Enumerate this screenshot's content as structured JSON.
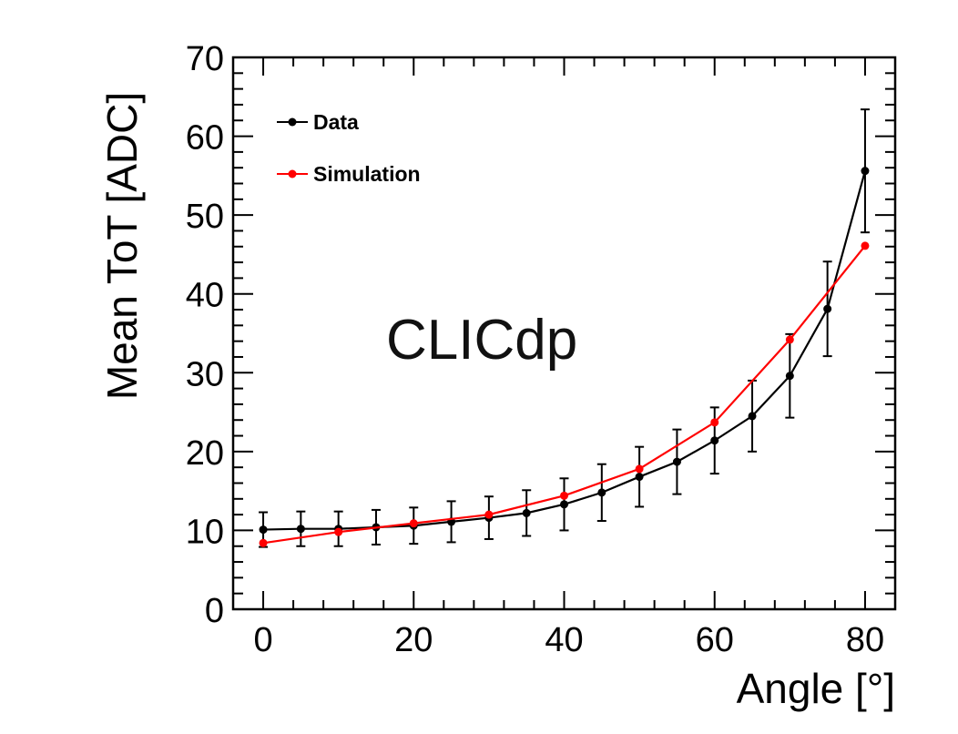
{
  "chart_data": {
    "type": "line",
    "title": "",
    "xlabel": "Angle [°]",
    "ylabel": "Mean ToT [ADC]",
    "xlim": [
      -4,
      84
    ],
    "ylim": [
      0,
      70
    ],
    "x_ticks": [
      0,
      20,
      40,
      60,
      80
    ],
    "y_ticks": [
      0,
      10,
      20,
      30,
      40,
      50,
      60,
      70
    ],
    "x_tick_labels": [
      "0",
      "20",
      "40",
      "60",
      "80"
    ],
    "y_tick_labels": [
      "0",
      "10",
      "20",
      "30",
      "40",
      "50",
      "60",
      "70"
    ],
    "annotation": "CLICdp",
    "legend_position": "top-left",
    "series": [
      {
        "name": "Data",
        "color": "#000000",
        "x": [
          0,
          5,
          10,
          15,
          20,
          25,
          30,
          35,
          40,
          45,
          50,
          55,
          60,
          65,
          70,
          75,
          80
        ],
        "y": [
          10.1,
          10.2,
          10.2,
          10.4,
          10.6,
          11.1,
          11.6,
          12.2,
          13.3,
          14.8,
          16.8,
          18.7,
          21.4,
          24.5,
          29.6,
          38.1,
          55.6
        ],
        "err": [
          2.2,
          2.2,
          2.2,
          2.2,
          2.3,
          2.6,
          2.7,
          2.9,
          3.3,
          3.6,
          3.8,
          4.1,
          4.2,
          4.5,
          5.3,
          6.0,
          7.8
        ]
      },
      {
        "name": "Simulation",
        "color": "#ff0000",
        "x": [
          0,
          10,
          20,
          30,
          40,
          50,
          60,
          70,
          80
        ],
        "y": [
          8.4,
          9.8,
          10.9,
          12.0,
          14.4,
          17.8,
          23.7,
          34.2,
          46.1
        ]
      }
    ]
  }
}
